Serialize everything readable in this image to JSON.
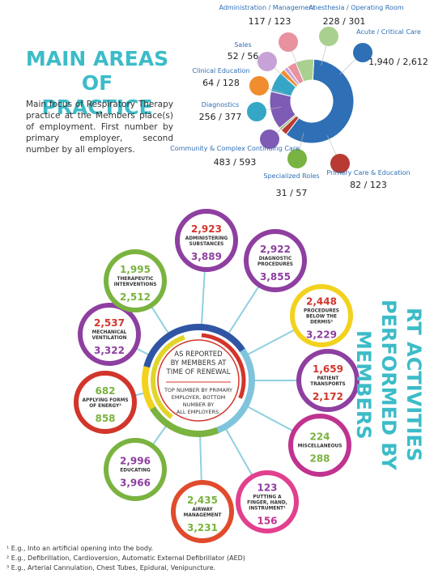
{
  "practice": {
    "title": "MAIN AREAS OF PRACTICE",
    "description": "Main focus of Respiratory Therapy practice at the Members place(s) of employment. First number by primary employer, second number by all employers."
  },
  "chart_data": {
    "type": "donut",
    "categories": [
      "Acute / Critical Care",
      "Primary Care & Education",
      "Specialized Roles",
      "Community & Complex Continuing Care",
      "Diagnostics",
      "Clinical Education",
      "Sales",
      "Administration / Management",
      "Anesthesia / Operating Room"
    ],
    "values": [
      1940,
      82,
      31,
      483,
      256,
      64,
      52,
      117,
      228
    ],
    "value_labels": [
      "1,940 / 2,612",
      "82 / 123",
      "31 / 57",
      "483 / 593",
      "256 / 377",
      "64 / 128",
      "52 / 56",
      "117 / 123",
      "228 / 301"
    ],
    "colors": [
      "#2f6fb5",
      "#b83a33",
      "#79b443",
      "#7e5bb5",
      "#36a6c6",
      "#f08d2e",
      "#c7a2d8",
      "#e8929f",
      "#a9d08e"
    ]
  },
  "activities": {
    "title": "RT ACTIVITIES PERFORMED BY MEMBERS",
    "center_top": [
      "AS REPORTED",
      "BY MEMBERS AT",
      "TIME OF RENEWAL"
    ],
    "center_bottom": [
      "TOP NUMBER BY PRIMARY",
      "EMPLOYER, BOTTOM",
      "NUMBER BY",
      "ALL EMPLOYERS."
    ],
    "items": [
      {
        "label": [
          "ADMINISTERING",
          "SUBSTANCES"
        ],
        "primary": "2,923",
        "all": "3,889",
        "ring": "#8e3fa0",
        "c1": "#d2352b",
        "c2": "#8e3fa0"
      },
      {
        "label": [
          "DIAGNOSTIC",
          "PROCEDURES"
        ],
        "primary": "2,922",
        "all": "3,855",
        "ring": "#8e3fa0",
        "c1": "#8e3fa0",
        "c2": "#8e3fa0"
      },
      {
        "label": [
          "PROCEDURES",
          "BELOW THE",
          "DERMIS³"
        ],
        "primary": "2,448",
        "all": "3,229",
        "ring": "#f2d21d",
        "c1": "#d2352b",
        "c2": "#8e3fa0"
      },
      {
        "label": [
          "PATIENT",
          "TRANSPORTS"
        ],
        "primary": "1,659",
        "all": "2,172",
        "ring": "#8e3fa0",
        "c1": "#d2352b",
        "c2": "#d2352b"
      },
      {
        "label": [
          "MISCELLANEOUS"
        ],
        "primary": "224",
        "all": "288",
        "ring": "#c0338f",
        "c1": "#7ab33f",
        "c2": "#7ab33f"
      },
      {
        "label": [
          "PUTTING A",
          "FINGER, HAND,",
          "INSTRUMENT¹"
        ],
        "primary": "123",
        "all": "156",
        "ring": "#e2408f",
        "c1": "#8e3fa0",
        "c2": "#c0338f"
      },
      {
        "label": [
          "AIRWAY",
          "MANAGEMENT"
        ],
        "primary": "2,435",
        "all": "3,231",
        "ring": "#e04b2c",
        "c1": "#7ab33f",
        "c2": "#7ab33f"
      },
      {
        "label": [
          "EDUCATING"
        ],
        "primary": "2,996",
        "all": "3,966",
        "ring": "#7ab33f",
        "c1": "#8e3fa0",
        "c2": "#8e3fa0"
      },
      {
        "label": [
          "APPLYING FORMS",
          "OF ENERGY²"
        ],
        "primary": "682",
        "all": "858",
        "ring": "#d2352b",
        "c1": "#7ab33f",
        "c2": "#7ab33f"
      },
      {
        "label": [
          "MECHANICAL",
          "VENTILATION"
        ],
        "primary": "2,537",
        "all": "3,322",
        "ring": "#8e3fa0",
        "c1": "#d2352b",
        "c2": "#8e3fa0"
      },
      {
        "label": [
          "THERAPEUTIC",
          "INTERVENTIONS"
        ],
        "primary": "1,995",
        "all": "2,512",
        "ring": "#7ab33f",
        "c1": "#7ab33f",
        "c2": "#7ab33f"
      }
    ]
  },
  "footnotes": [
    "¹ E.g., Into an artificial opening into the body.",
    "² E.g., Defibrillation, Cardioversion, Automatic External Defibrillator (AED)",
    "³ E.g., Arterial Cannulation, Chest Tubes, Epidural, Venipuncture."
  ]
}
